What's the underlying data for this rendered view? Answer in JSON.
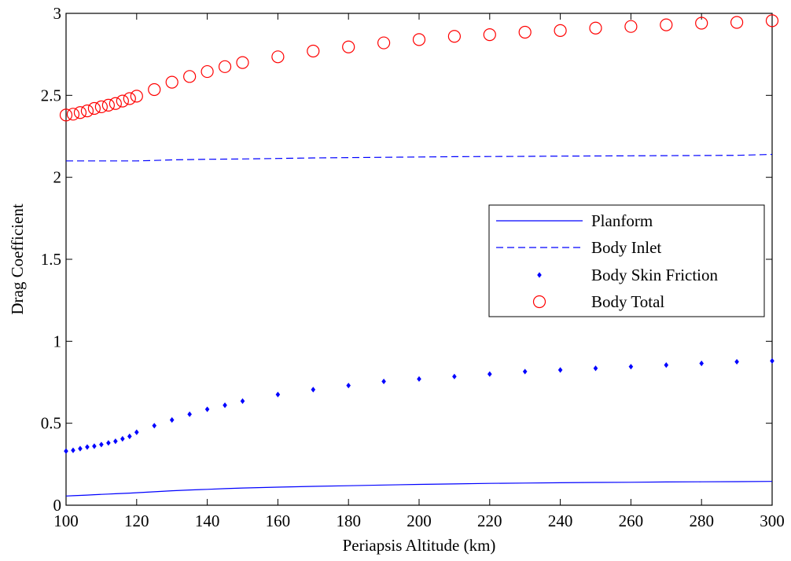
{
  "chart_data": {
    "type": "line",
    "xlabel": "Periapsis Altitude (km)",
    "ylabel": "Drag Coefficient",
    "xlim": [
      100,
      300
    ],
    "ylim": [
      0,
      3
    ],
    "xticks": [
      100,
      120,
      140,
      160,
      180,
      200,
      220,
      240,
      260,
      280,
      300
    ],
    "yticks": [
      0,
      0.5,
      1,
      1.5,
      2,
      2.5,
      3
    ],
    "ytick_labels": [
      "0",
      "0.5",
      "1",
      "1.5",
      "2",
      "2.5",
      "3"
    ],
    "grid": false,
    "legend_position": "center-right",
    "x": [
      100,
      102,
      104,
      106,
      108,
      110,
      112,
      114,
      116,
      118,
      120,
      125,
      130,
      135,
      140,
      145,
      150,
      160,
      170,
      180,
      190,
      200,
      210,
      220,
      230,
      240,
      250,
      260,
      270,
      280,
      290,
      300
    ],
    "series": [
      {
        "name": "Planform",
        "style": "solid-line",
        "color": "#0000ff",
        "values": [
          0.056,
          0.058,
          0.06,
          0.062,
          0.064,
          0.066,
          0.068,
          0.07,
          0.072,
          0.074,
          0.076,
          0.082,
          0.088,
          0.093,
          0.097,
          0.101,
          0.105,
          0.11,
          0.115,
          0.119,
          0.123,
          0.127,
          0.13,
          0.133,
          0.135,
          0.137,
          0.139,
          0.14,
          0.142,
          0.143,
          0.144,
          0.145
        ]
      },
      {
        "name": "Body Inlet",
        "style": "dashed-line",
        "color": "#0000ff",
        "values": [
          2.1,
          2.1,
          2.1,
          2.1,
          2.1,
          2.1,
          2.1,
          2.1,
          2.1,
          2.1,
          2.1,
          2.103,
          2.106,
          2.108,
          2.11,
          2.111,
          2.112,
          2.115,
          2.118,
          2.12,
          2.122,
          2.124,
          2.126,
          2.127,
          2.128,
          2.129,
          2.13,
          2.131,
          2.132,
          2.133,
          2.134,
          2.14
        ]
      },
      {
        "name": "Body Skin Friction",
        "style": "point-markers",
        "color": "#0000ff",
        "values": [
          0.33,
          0.335,
          0.345,
          0.355,
          0.36,
          0.37,
          0.38,
          0.39,
          0.405,
          0.42,
          0.445,
          0.485,
          0.52,
          0.555,
          0.585,
          0.61,
          0.635,
          0.675,
          0.705,
          0.73,
          0.755,
          0.77,
          0.785,
          0.8,
          0.815,
          0.825,
          0.835,
          0.845,
          0.855,
          0.865,
          0.875,
          0.88
        ]
      },
      {
        "name": "Body Total",
        "style": "circle-markers",
        "color": "#ff0000",
        "values": [
          2.38,
          2.385,
          2.395,
          2.405,
          2.42,
          2.43,
          2.44,
          2.45,
          2.465,
          2.48,
          2.495,
          2.535,
          2.58,
          2.615,
          2.645,
          2.675,
          2.7,
          2.735,
          2.77,
          2.795,
          2.82,
          2.84,
          2.86,
          2.87,
          2.885,
          2.895,
          2.91,
          2.92,
          2.93,
          2.94,
          2.945,
          2.955
        ]
      }
    ]
  }
}
